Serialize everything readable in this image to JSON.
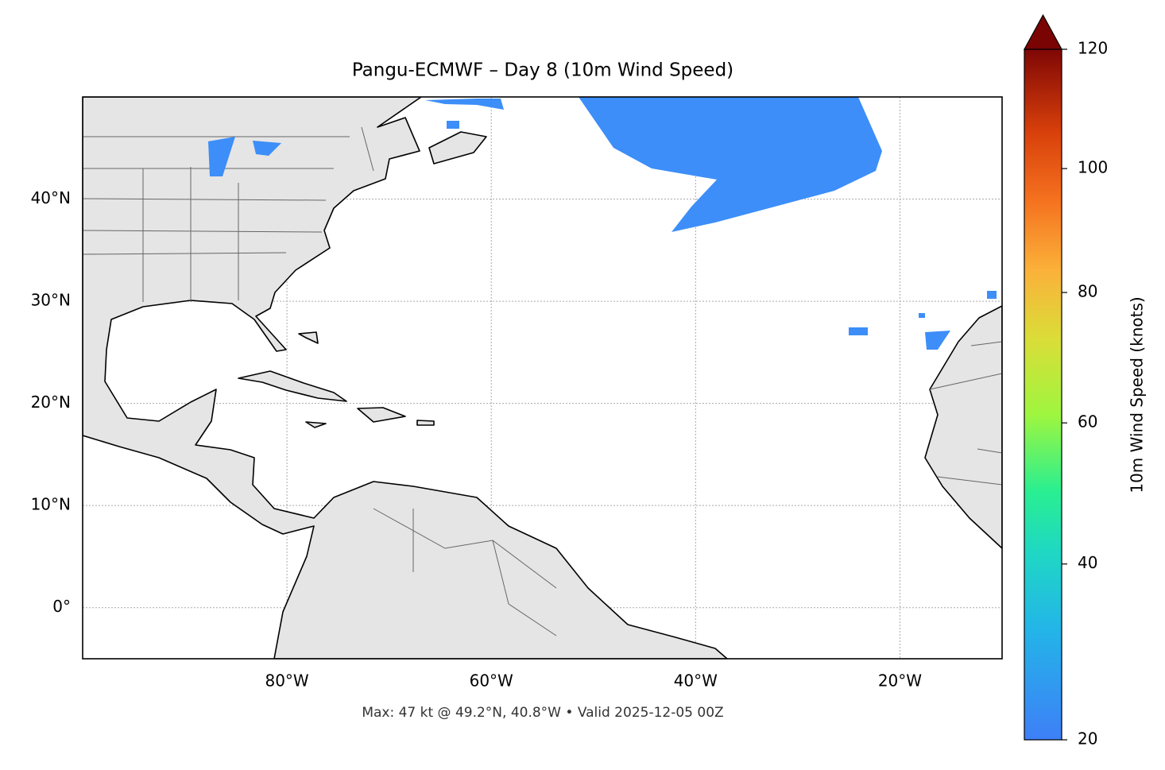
{
  "chart_data": {
    "type": "map",
    "title": "Pangu-ECMWF – Day 8 (10m Wind Speed)",
    "footnote": "Max: 47 kt @ 49.2°N, 40.8°W • Valid 2025-12-05 00Z",
    "xlim": [
      -100,
      -10
    ],
    "ylim": [
      -5,
      50
    ],
    "xticks": [
      {
        "value": -80,
        "label": "80°W"
      },
      {
        "value": -60,
        "label": "60°W"
      },
      {
        "value": -40,
        "label": "40°W"
      },
      {
        "value": -20,
        "label": "20°W"
      }
    ],
    "yticks": [
      {
        "value": 0,
        "label": "0°"
      },
      {
        "value": 10,
        "label": "10°N"
      },
      {
        "value": 20,
        "label": "20°N"
      },
      {
        "value": 30,
        "label": "30°N"
      },
      {
        "value": 40,
        "label": "40°N"
      }
    ],
    "grid": true,
    "colorbar": {
      "label": "10m Wind Speed (knots)",
      "lim": [
        20,
        120
      ],
      "ticks": [
        20,
        40,
        60,
        80,
        100,
        120
      ],
      "norm": "power",
      "gamma": 0.85,
      "extend": "max"
    }
  }
}
